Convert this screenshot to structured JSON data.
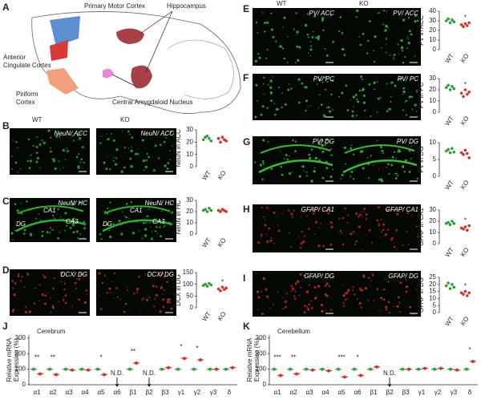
{
  "figure": {
    "diagram": {
      "panel": "A",
      "labels": [
        "Primary Motor Cortex",
        "Hippocampus",
        "Anterior Cingulate Cortex",
        "Piriform Cortex",
        "Central Amygdaloid Nucleus"
      ]
    },
    "headers": [
      "WT",
      "KO"
    ],
    "hippocampus_labels": [
      "CA1",
      "CA3",
      "DG"
    ],
    "micrographs": [
      {
        "caption": "NeuN/ ACC",
        "color": "#2fae2f"
      },
      {
        "caption": "NeuN/ HC",
        "color": "#2fae2f"
      },
      {
        "caption": "DCX/ DG",
        "color": "#c8321e"
      },
      {
        "caption": "PV/ ACC",
        "color": "#3cb83c"
      },
      {
        "caption": "PV/ PC",
        "color": "#3cb83c"
      },
      {
        "caption": "PV/ DG",
        "color": "#3cb83c"
      },
      {
        "caption": "GFAP/ CA1",
        "color": "#b8281c"
      },
      {
        "caption": "GFAP/ DG",
        "color": "#c8321e"
      }
    ]
  },
  "chart_data": [
    {
      "type": "strip",
      "panel": "B",
      "ylabel": "NeuN in ACC",
      "categories": [
        "WT",
        "KO"
      ],
      "ylim": [
        0,
        30
      ],
      "yticks": [
        0,
        10,
        20,
        30
      ],
      "series": [
        {
          "color": "#2e9e3a",
          "values": [
            22,
            24,
            25,
            23,
            21
          ]
        },
        {
          "color": "#d0342c",
          "values": [
            23,
            20,
            24,
            22,
            21
          ]
        }
      ]
    },
    {
      "type": "strip",
      "panel": "C",
      "ylabel": "NeuN in HC",
      "categories": [
        "WT",
        "KO"
      ],
      "ylim": [
        0,
        30
      ],
      "yticks": [
        0,
        10,
        20,
        30
      ],
      "series": [
        {
          "color": "#2e9e3a",
          "values": [
            21,
            22,
            20,
            23,
            21
          ]
        },
        {
          "color": "#d0342c",
          "values": [
            21,
            20,
            22,
            21,
            20
          ]
        }
      ]
    },
    {
      "type": "strip",
      "panel": "D",
      "ylabel": "DCX in DG",
      "categories": [
        "WT",
        "KO"
      ],
      "ylim": [
        0,
        150
      ],
      "yticks": [
        0,
        50,
        100,
        150
      ],
      "annotation": "*",
      "series": [
        {
          "color": "#2e9e3a",
          "values": [
            95,
            100,
            92,
            104,
            97
          ]
        },
        {
          "color": "#d0342c",
          "values": [
            80,
            72,
            88,
            78,
            84
          ]
        }
      ]
    },
    {
      "type": "strip",
      "panel": "E",
      "ylabel": "PV in ACC",
      "categories": [
        "WT",
        "KO"
      ],
      "ylim": [
        0,
        40
      ],
      "yticks": [
        0,
        10,
        20,
        30,
        40
      ],
      "annotation": "*",
      "series": [
        {
          "color": "#2e9e3a",
          "values": [
            30,
            32,
            28,
            31,
            29
          ]
        },
        {
          "color": "#d0342c",
          "values": [
            26,
            24,
            27,
            25,
            28
          ]
        }
      ]
    },
    {
      "type": "strip",
      "panel": "F",
      "ylabel": "PV in PC",
      "categories": [
        "WT",
        "KO"
      ],
      "ylim": [
        0,
        30
      ],
      "yticks": [
        0,
        10,
        20,
        30
      ],
      "annotation": "*",
      "series": [
        {
          "color": "#2e9e3a",
          "values": [
            22,
            24,
            20,
            23,
            21
          ]
        },
        {
          "color": "#d0342c",
          "values": [
            17,
            14,
            20,
            16,
            18
          ]
        }
      ]
    },
    {
      "type": "strip",
      "panel": "G",
      "ylabel": "PV in DG",
      "categories": [
        "WT",
        "KO"
      ],
      "ylim": [
        0,
        10
      ],
      "yticks": [
        0,
        5,
        10
      ],
      "series": [
        {
          "color": "#2e9e3a",
          "values": [
            7.5,
            8,
            7,
            8.3,
            7.2
          ]
        },
        {
          "color": "#d0342c",
          "values": [
            7,
            6.5,
            7.8,
            6.8,
            5.5
          ]
        }
      ]
    },
    {
      "type": "strip",
      "panel": "H",
      "ylabel": "GFAP in CA1",
      "categories": [
        "WT",
        "KO"
      ],
      "ylim": [
        0,
        30
      ],
      "yticks": [
        0,
        10,
        20,
        30
      ],
      "annotation": "*",
      "series": [
        {
          "color": "#2e9e3a",
          "values": [
            18,
            19,
            17,
            20,
            18
          ]
        },
        {
          "color": "#d0342c",
          "values": [
            14,
            13,
            15,
            12,
            16
          ]
        }
      ]
    },
    {
      "type": "strip",
      "panel": "I",
      "ylabel": "GFAP in DG",
      "categories": [
        "WT",
        "KO"
      ],
      "ylim": [
        0,
        25
      ],
      "yticks": [
        0,
        5,
        10,
        15,
        20,
        25
      ],
      "annotation": "*",
      "series": [
        {
          "color": "#2e9e3a",
          "values": [
            19,
            21,
            17,
            20,
            18
          ]
        },
        {
          "color": "#d0342c",
          "values": [
            14,
            13,
            15,
            12,
            14
          ]
        }
      ]
    },
    {
      "type": "means",
      "panel": "J",
      "title": "Cerebrum",
      "ylabel": [
        "Relative mRNA",
        "Expression (%)"
      ],
      "categories": [
        "α1",
        "α2",
        "α3",
        "α4",
        "α5",
        "α6",
        "β1",
        "β2",
        "β3",
        "γ1",
        "γ2",
        "γ3",
        "δ"
      ],
      "annotations": [
        "**",
        "**",
        null,
        null,
        "*",
        "N.D.",
        "**",
        "N.D.",
        null,
        "*",
        "*",
        null,
        null
      ],
      "ylim": [
        0,
        320
      ],
      "yticks": [
        0,
        100,
        200,
        300
      ],
      "series": [
        {
          "color": "#2e9e3a",
          "values": [
            100,
            100,
            100,
            100,
            100,
            null,
            100,
            null,
            100,
            100,
            100,
            100,
            100
          ]
        },
        {
          "color": "#d0342c",
          "values": [
            70,
            65,
            95,
            95,
            65,
            null,
            140,
            null,
            110,
            170,
            160,
            100,
            110
          ]
        }
      ]
    },
    {
      "type": "means",
      "panel": "K",
      "title": "Cerebellum",
      "ylabel": [
        "Relative mRNA",
        "Expression (%)"
      ],
      "categories": [
        "α1",
        "α2",
        "α3",
        "α4",
        "α5",
        "α6",
        "β1",
        "β2",
        "β3",
        "γ1",
        "γ2",
        "γ3",
        "δ"
      ],
      "annotations": [
        "***",
        "**",
        null,
        null,
        "***",
        "*",
        null,
        "N.D.",
        null,
        null,
        null,
        null,
        "*"
      ],
      "ylim": [
        0,
        320
      ],
      "yticks": [
        0,
        100,
        200,
        300
      ],
      "series": [
        {
          "color": "#2e9e3a",
          "values": [
            100,
            100,
            100,
            100,
            100,
            100,
            100,
            null,
            100,
            100,
            100,
            100,
            100
          ]
        },
        {
          "color": "#d0342c",
          "values": [
            60,
            70,
            95,
            90,
            50,
            60,
            115,
            null,
            100,
            105,
            105,
            95,
            150
          ]
        }
      ]
    }
  ]
}
